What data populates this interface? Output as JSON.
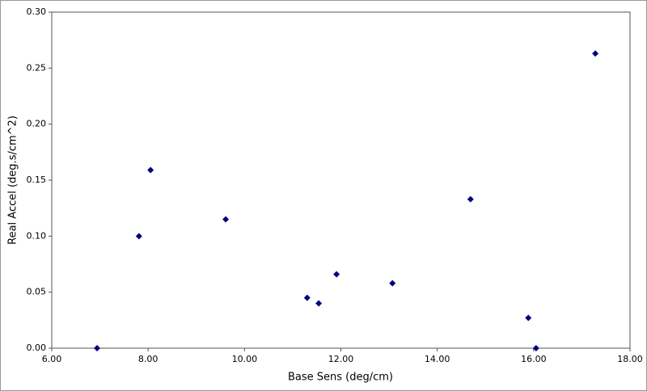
{
  "chart_data": {
    "type": "scatter",
    "x_label": "Base Sens (deg/cm)",
    "y_label": "Real Accel (deg.s/cm^2)",
    "series": [
      {
        "color": "#000080",
        "x": [
          6.94,
          7.81,
          8.05,
          9.61,
          11.3,
          11.54,
          11.91,
          13.07,
          14.69,
          15.89,
          16.05,
          17.28
        ],
        "values": [
          0.0,
          0.1,
          0.159,
          0.115,
          0.045,
          0.04,
          0.066,
          0.058,
          0.133,
          0.027,
          0.0,
          0.263
        ]
      }
    ],
    "xlim": [
      6,
      18
    ],
    "xticks": [
      {
        "value": 6,
        "label": "6.00"
      },
      {
        "value": 8,
        "label": "8.00"
      },
      {
        "value": 10,
        "label": "10.00"
      },
      {
        "value": 12,
        "label": "12.00"
      },
      {
        "value": 14,
        "label": "14.00"
      },
      {
        "value": 16,
        "label": "16.00"
      },
      {
        "value": 18,
        "label": "18.00"
      }
    ],
    "ylim": [
      0,
      0.3
    ],
    "yticks": [
      {
        "value": 0,
        "label": "0.00"
      },
      {
        "value": 0.05,
        "label": "0.05"
      },
      {
        "value": 0.1,
        "label": "0.10"
      },
      {
        "value": 0.15,
        "label": "0.15"
      },
      {
        "value": 0.2,
        "label": "0.20"
      },
      {
        "value": 0.25,
        "label": "0.25"
      },
      {
        "value": 0.3,
        "label": "0.30"
      }
    ],
    "grid": false
  }
}
